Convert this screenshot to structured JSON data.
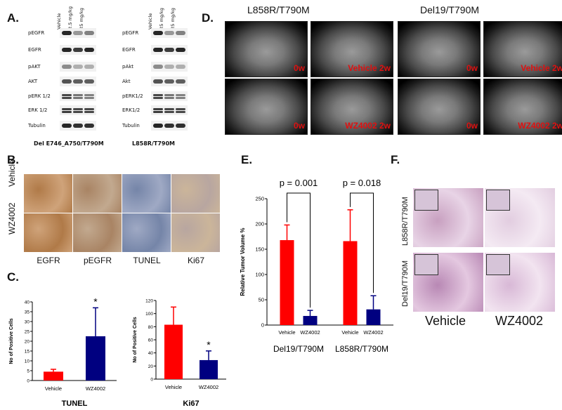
{
  "panelA": {
    "letter": "A.",
    "left": {
      "lanes": [
        "Vehicle",
        "2.5 mg/kg",
        "25 mg/kg"
      ],
      "rows": [
        "pEGFR",
        "EGFR",
        "pAKT",
        "AKT",
        "pERK 1/2",
        "ERK 1/2",
        "Tubulin"
      ],
      "caption": "Del E746_A750/T790M"
    },
    "right": {
      "lanes": [
        "Vehicle",
        "25 mg/kg",
        "25 mg/kg"
      ],
      "rows": [
        "pEGFR",
        "EGFR",
        "pAkt",
        "Akt",
        "pERK1/2",
        "ERK1/2",
        "Tubulin"
      ],
      "caption": "L858R/T790M"
    }
  },
  "panelD": {
    "letter": "D.",
    "groups": [
      {
        "title": "L858R/T790M",
        "labels": [
          "0w",
          "Vehicle 2w",
          "0w",
          "WZ4002 2w"
        ]
      },
      {
        "title": "Del19/T790M",
        "labels": [
          "0w",
          "Vehicle 2w",
          "0w",
          "WZ4002 2w"
        ]
      }
    ]
  },
  "panelB": {
    "letter": "B.",
    "rows": [
      "Vehicle",
      "WZ4002"
    ],
    "cols": [
      "EGFR",
      "pEGFR",
      "TUNEL",
      "Ki67"
    ]
  },
  "panelC": {
    "letter": "C.",
    "charts": [
      {
        "ylabel": "No of Positive Cells",
        "title": "TUNEL"
      },
      {
        "ylabel": "No of Positive Cells",
        "title": "Ki67"
      }
    ]
  },
  "panelE": {
    "letter": "E.",
    "ylabel": "Relative Tumor Volume %",
    "groups": [
      "Del19/T790M",
      "L858R/T790M"
    ],
    "pvalues": [
      "p = 0.001",
      "p = 0.018"
    ]
  },
  "panelF": {
    "letter": "F.",
    "rows": [
      "L858R/T790M",
      "Del19/T790M"
    ],
    "cols": [
      "Vehicle",
      "WZ4002"
    ]
  },
  "chart_data": [
    {
      "type": "bar",
      "title": "TUNEL",
      "ylabel": "No of Positive Cells",
      "categories": [
        "Vehicle",
        "WZ4002"
      ],
      "values": [
        4.5,
        22.5
      ],
      "errors": [
        1.2,
        14.5
      ],
      "colors": [
        "#ff0000",
        "#000080"
      ],
      "ylim": [
        0,
        40
      ],
      "yticks": [
        0,
        5,
        10,
        15,
        20,
        25,
        30,
        35,
        40
      ],
      "annotations": [
        "",
        "*"
      ]
    },
    {
      "type": "bar",
      "title": "Ki67",
      "ylabel": "No of Positive Cells",
      "categories": [
        "Vehicle",
        "WZ4002"
      ],
      "values": [
        83,
        29
      ],
      "errors": [
        27,
        14
      ],
      "colors": [
        "#ff0000",
        "#000080"
      ],
      "ylim": [
        0,
        120
      ],
      "yticks": [
        0,
        20,
        40,
        60,
        80,
        100,
        120
      ],
      "annotations": [
        "",
        "*"
      ]
    },
    {
      "type": "bar",
      "ylabel": "Relative Tumor Volume %",
      "groups": [
        "Del19/T790M",
        "L858R/T790M"
      ],
      "categories": [
        "Vehicle",
        "WZ4002",
        "Vehicle",
        "WZ4002"
      ],
      "values": [
        168,
        18,
        166,
        31
      ],
      "errors": [
        30,
        11,
        62,
        27
      ],
      "colors": [
        "#ff0000",
        "#000080",
        "#ff0000",
        "#000080"
      ],
      "ylim": [
        0,
        250
      ],
      "yticks": [
        0,
        50,
        100,
        150,
        200,
        250
      ],
      "annotations": [
        "p = 0.001",
        "p = 0.018"
      ]
    }
  ]
}
